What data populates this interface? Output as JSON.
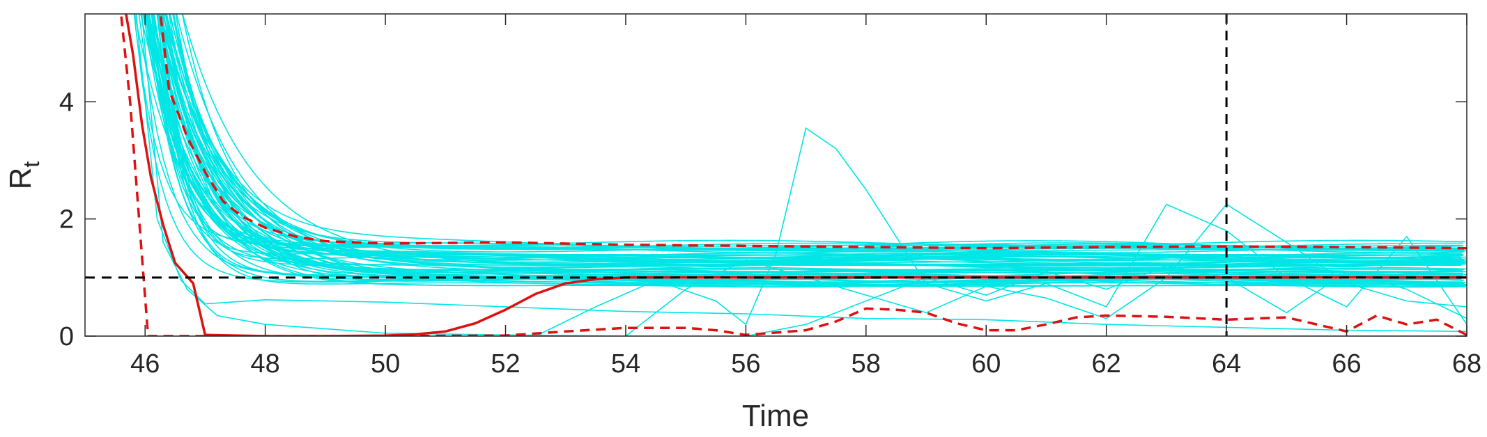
{
  "chart_data": {
    "type": "line",
    "xlabel": "Time",
    "ylabel": "R",
    "ylabel_subscript": "t",
    "xlim": [
      45,
      68
    ],
    "ylim": [
      0,
      5.5
    ],
    "grid": false,
    "x_ticks": [
      46,
      48,
      50,
      52,
      54,
      56,
      58,
      60,
      62,
      64,
      66,
      68
    ],
    "y_ticks": [
      0,
      2,
      4
    ],
    "reference_lines": {
      "horizontal_y": 1,
      "vertical_x": 64
    },
    "colors": {
      "ensemble": "#00e5e5",
      "red": "#dd1111",
      "reference": "#000000",
      "axes": "#262626"
    },
    "series": [
      {
        "style": "red-solid",
        "points": [
          [
            45.6,
            6
          ],
          [
            45.8,
            4.8
          ],
          [
            45.95,
            3.6
          ],
          [
            46.1,
            2.7
          ],
          [
            46.3,
            1.9
          ],
          [
            46.5,
            1.25
          ],
          [
            46.8,
            0.9
          ],
          [
            47.0,
            0.02
          ],
          [
            48,
            0.0
          ],
          [
            49,
            0.0
          ],
          [
            50,
            0.01
          ],
          [
            50.5,
            0.03
          ],
          [
            51,
            0.08
          ],
          [
            51.5,
            0.22
          ],
          [
            52,
            0.45
          ],
          [
            52.5,
            0.72
          ],
          [
            53,
            0.9
          ],
          [
            53.5,
            0.97
          ],
          [
            54,
            1.0
          ],
          [
            68,
            1.0
          ]
        ]
      },
      {
        "style": "red-dashed",
        "points": [
          [
            45.55,
            6
          ],
          [
            45.75,
            4.0
          ],
          [
            45.9,
            2.0
          ],
          [
            46.05,
            0.0
          ],
          [
            47,
            0.0
          ],
          [
            50,
            0.0
          ],
          [
            52,
            0.01
          ],
          [
            53,
            0.08
          ],
          [
            54,
            0.14
          ],
          [
            55,
            0.14
          ],
          [
            55.5,
            0.1
          ],
          [
            56,
            0.02
          ],
          [
            57,
            0.1
          ],
          [
            57.5,
            0.25
          ],
          [
            58,
            0.47
          ],
          [
            58.5,
            0.45
          ],
          [
            59,
            0.4
          ],
          [
            59.5,
            0.22
          ],
          [
            60,
            0.1
          ],
          [
            60.5,
            0.1
          ],
          [
            61,
            0.2
          ],
          [
            61.5,
            0.32
          ],
          [
            62,
            0.35
          ],
          [
            63,
            0.33
          ],
          [
            64,
            0.28
          ],
          [
            64.5,
            0.3
          ],
          [
            65,
            0.32
          ],
          [
            66,
            0.08
          ],
          [
            66.5,
            0.35
          ],
          [
            67,
            0.2
          ],
          [
            67.5,
            0.28
          ],
          [
            68,
            0.02
          ]
        ]
      },
      {
        "style": "red-dashed",
        "points": [
          [
            46.2,
            6
          ],
          [
            46.4,
            4.2
          ],
          [
            46.7,
            3.4
          ],
          [
            47,
            2.8
          ],
          [
            47.3,
            2.3
          ],
          [
            47.6,
            2.05
          ],
          [
            48,
            1.85
          ],
          [
            48.5,
            1.7
          ],
          [
            49,
            1.62
          ],
          [
            50,
            1.58
          ],
          [
            52,
            1.6
          ],
          [
            54,
            1.56
          ],
          [
            56,
            1.54
          ],
          [
            58,
            1.52
          ],
          [
            60,
            1.5
          ],
          [
            62,
            1.52
          ],
          [
            64,
            1.53
          ],
          [
            66,
            1.52
          ],
          [
            68,
            1.5
          ]
        ]
      }
    ]
  }
}
